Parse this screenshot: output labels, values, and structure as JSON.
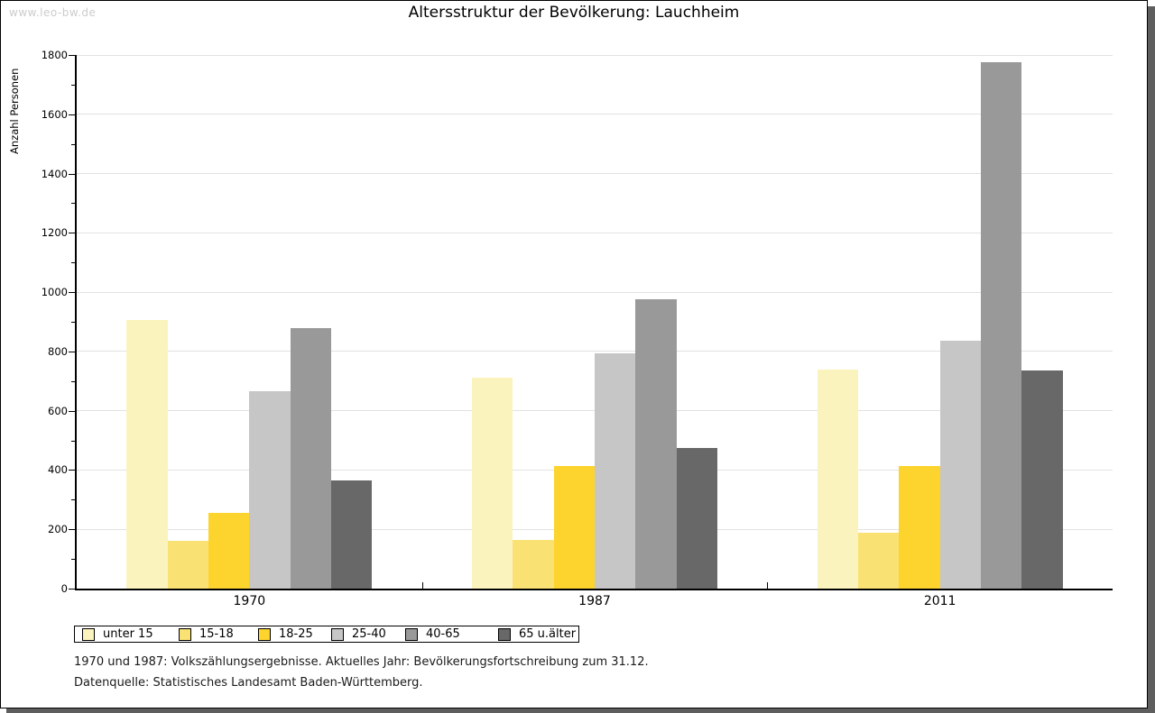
{
  "page": {
    "watermark": "www.leo-bw.de"
  },
  "chart_data": {
    "type": "bar",
    "title": "Altersstruktur der Bevölkerung: Lauchheim",
    "ylabel": "Anzahl Personen",
    "xlabel": "",
    "ylim": [
      0,
      1800
    ],
    "y_major_step": 200,
    "y_minor_step": 100,
    "grid": true,
    "legend_position": "bottom",
    "categories": [
      "1970",
      "1987",
      "2011"
    ],
    "series": [
      {
        "name": "unter 15",
        "color": "#fbf3bd",
        "values": [
          905,
          710,
          740
        ]
      },
      {
        "name": "15-18",
        "color": "#fae173",
        "values": [
          160,
          165,
          190
        ]
      },
      {
        "name": "18-25",
        "color": "#fdd32e",
        "values": [
          255,
          415,
          415
        ]
      },
      {
        "name": "25-40",
        "color": "#c6c6c6",
        "values": [
          665,
          795,
          835
        ]
      },
      {
        "name": "40-65",
        "color": "#999999",
        "values": [
          880,
          975,
          1775
        ]
      },
      {
        "name": "65 u.älter",
        "color": "#686868",
        "values": [
          365,
          475,
          735
        ]
      }
    ],
    "footnotes": [
      "1970 und 1987: Volkszählungsergebnisse. Aktuelles Jahr: Bevölkerungsfortschreibung zum 31.12.",
      "Datenquelle: Statistisches Landesamt Baden-Württemberg."
    ]
  }
}
